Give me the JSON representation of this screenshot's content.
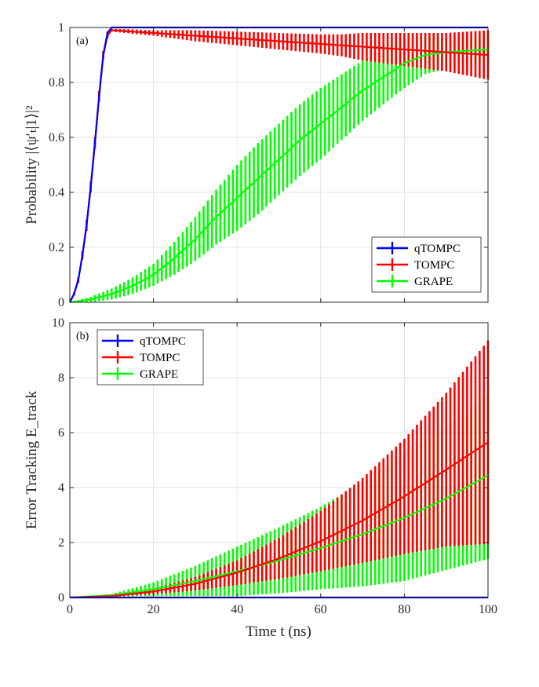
{
  "chart_data": [
    {
      "type": "line",
      "panel_label": "(a)",
      "ylabel": "Probability |⟨ψ′ₜ|1⟩|²",
      "xlabel": "",
      "xlim": [
        0,
        100
      ],
      "ylim": [
        0,
        1
      ],
      "xticks": [
        "0",
        "20",
        "40",
        "60",
        "80",
        "100"
      ],
      "show_xtick_labels": false,
      "yticks": [
        "0",
        "0.2",
        "0.4",
        "0.6",
        "0.8",
        "1"
      ],
      "ytick_values": [
        0,
        0.2,
        0.4,
        0.6,
        0.8,
        1
      ],
      "grid": true,
      "legend_position": "bottom-right",
      "series": [
        {
          "name": "qTOMPC",
          "color": "#0000ff",
          "x": [
            0,
            1,
            2,
            3,
            4,
            5,
            6,
            7,
            8,
            9,
            10,
            15,
            20,
            30,
            40,
            50,
            60,
            70,
            80,
            90,
            100
          ],
          "values": [
            0,
            0.03,
            0.08,
            0.17,
            0.28,
            0.42,
            0.58,
            0.75,
            0.9,
            0.98,
            1,
            1,
            1,
            1,
            1,
            1,
            1,
            1,
            1,
            1,
            1
          ],
          "errors": [
            0,
            0.005,
            0.005,
            0.005,
            0.005,
            0.005,
            0.005,
            0.005,
            0.005,
            0.005,
            0,
            0,
            0,
            0,
            0,
            0,
            0,
            0,
            0,
            0,
            0
          ]
        },
        {
          "name": "TOMPC",
          "color": "#ff0000",
          "x": [
            0,
            1,
            2,
            3,
            4,
            5,
            6,
            7,
            8,
            9,
            10,
            15,
            20,
            30,
            40,
            50,
            60,
            65,
            70,
            80,
            90,
            100
          ],
          "values": [
            0,
            0.03,
            0.08,
            0.17,
            0.28,
            0.42,
            0.58,
            0.75,
            0.9,
            0.97,
            0.99,
            0.985,
            0.98,
            0.97,
            0.96,
            0.95,
            0.94,
            0.935,
            0.93,
            0.92,
            0.91,
            0.9
          ],
          "errors": [
            0,
            0.005,
            0.01,
            0.015,
            0.02,
            0.02,
            0.02,
            0.02,
            0.015,
            0.01,
            0.005,
            0.008,
            0.01,
            0.02,
            0.025,
            0.03,
            0.035,
            0.04,
            0.05,
            0.06,
            0.07,
            0.09
          ]
        },
        {
          "name": "GRAPE",
          "color": "#00ff00",
          "x": [
            0,
            5,
            10,
            15,
            20,
            25,
            30,
            35,
            40,
            45,
            50,
            55,
            60,
            65,
            70,
            75,
            80,
            85,
            90,
            95,
            100
          ],
          "values": [
            0,
            0.01,
            0.03,
            0.06,
            0.1,
            0.16,
            0.23,
            0.31,
            0.38,
            0.45,
            0.52,
            0.59,
            0.65,
            0.71,
            0.77,
            0.82,
            0.87,
            0.9,
            0.91,
            0.915,
            0.92
          ],
          "errors": [
            0,
            0.01,
            0.02,
            0.03,
            0.04,
            0.06,
            0.08,
            0.1,
            0.12,
            0.13,
            0.13,
            0.13,
            0.13,
            0.12,
            0.11,
            0.1,
            0.09,
            0.07,
            0.06,
            0.05,
            0.045
          ]
        }
      ]
    },
    {
      "type": "line",
      "panel_label": "(b)",
      "ylabel": "Error Tracking E_track",
      "xlabel": "Time t (ns)",
      "xlim": [
        0,
        100
      ],
      "ylim": [
        0,
        10
      ],
      "xticks": [
        "0",
        "20",
        "40",
        "60",
        "80",
        "100"
      ],
      "show_xtick_labels": true,
      "yticks": [
        "0",
        "2",
        "4",
        "6",
        "8",
        "10"
      ],
      "ytick_values": [
        0,
        2,
        4,
        6,
        8,
        10
      ],
      "grid": true,
      "legend_position": "top-left",
      "series": [
        {
          "name": "qTOMPC",
          "color": "#0000ff",
          "x": [
            0,
            20,
            40,
            60,
            80,
            100
          ],
          "values": [
            0,
            0,
            0,
            0,
            0,
            0
          ],
          "errors": [
            0,
            0,
            0,
            0,
            0,
            0
          ]
        },
        {
          "name": "TOMPC",
          "color": "#ff0000",
          "x": [
            0,
            10,
            20,
            30,
            40,
            50,
            60,
            70,
            80,
            90,
            100
          ],
          "values": [
            0,
            0.05,
            0.22,
            0.5,
            0.9,
            1.42,
            2.05,
            2.8,
            3.68,
            4.65,
            5.65
          ],
          "errors": [
            0,
            0.02,
            0.1,
            0.25,
            0.45,
            0.75,
            1.1,
            1.55,
            2.1,
            2.8,
            3.7
          ]
        },
        {
          "name": "GRAPE",
          "color": "#00ff00",
          "x": [
            0,
            10,
            20,
            30,
            40,
            50,
            60,
            70,
            80,
            90,
            100
          ],
          "values": [
            0,
            0.08,
            0.3,
            0.6,
            0.95,
            1.35,
            1.8,
            2.3,
            2.9,
            3.6,
            4.45
          ],
          "errors": [
            0,
            0.05,
            0.25,
            0.55,
            0.9,
            1.2,
            1.5,
            1.9,
            2.3,
            2.6,
            3.05
          ]
        }
      ]
    }
  ]
}
